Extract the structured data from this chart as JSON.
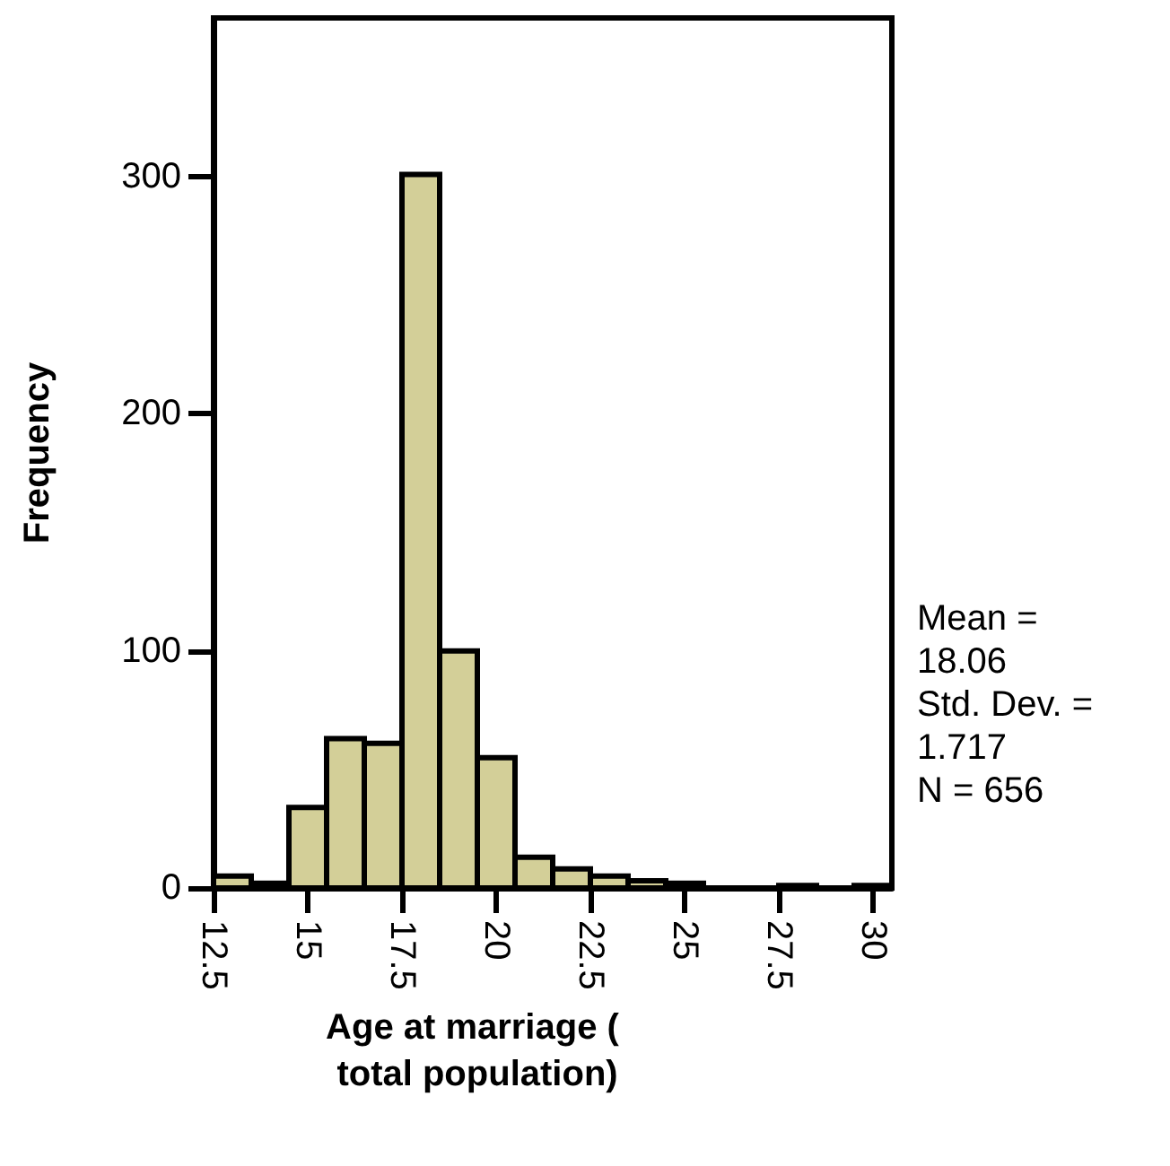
{
  "chart_data": {
    "type": "histogram",
    "xlabel": "Age at marriage ( total population)",
    "ylabel": "Frequency",
    "bins": [
      12.5,
      13.5,
      14.5,
      15.5,
      16.5,
      17.5,
      18.5,
      19.5,
      20.5,
      21.5,
      22.5,
      23.5,
      24.5,
      25.5,
      26.5,
      27.5,
      28.5,
      29.5,
      30.5
    ],
    "values": [
      5,
      2,
      34,
      63,
      61,
      301,
      100,
      55,
      13,
      8,
      5,
      3,
      2,
      0,
      0,
      1,
      0,
      1
    ],
    "color": "#d3cf98",
    "xlim": [
      12.5,
      30.5
    ],
    "xticks": [
      12.5,
      15,
      17.5,
      20,
      22.5,
      25,
      27.5,
      30
    ],
    "ylim": [
      0,
      367
    ],
    "yticks": [
      0,
      100,
      200,
      300
    ],
    "grid": false,
    "annotations": [
      "Mean = 18.06",
      "Std. Dev. = 1.717",
      "N = 656"
    ]
  }
}
